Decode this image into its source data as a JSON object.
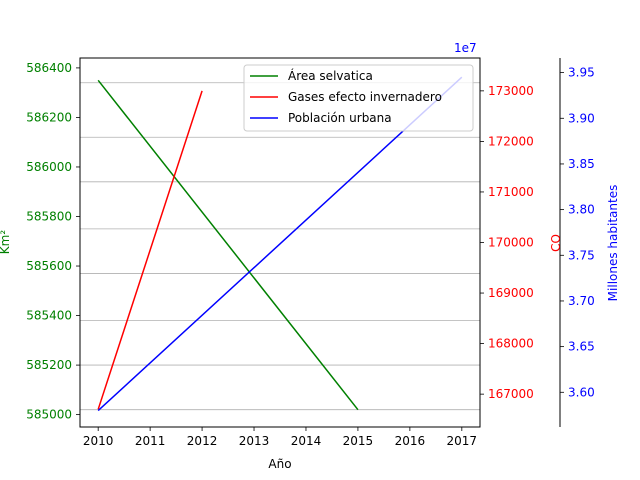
{
  "chart_data": {
    "type": "line",
    "x": [
      2010,
      2011,
      2012,
      2013,
      2014,
      2015,
      2016,
      2017
    ],
    "xlabel": "Año",
    "xlim": [
      2009.65,
      2017.35
    ],
    "xticks": [
      "2010",
      "2011",
      "2012",
      "2013",
      "2014",
      "2015",
      "2016",
      "2017"
    ],
    "axes": {
      "left": {
        "label": "Km²",
        "color": "#008000",
        "ylim": [
          584950,
          586440
        ],
        "ticks": [
          585000,
          585200,
          585400,
          585600,
          585800,
          586000,
          586200,
          586400
        ],
        "tick_labels": [
          "585000",
          "585200",
          "585400",
          "585600",
          "585800",
          "586000",
          "586200",
          "586400"
        ]
      },
      "right1": {
        "label": "CO",
        "color": "#ff0000",
        "ylim": [
          166350,
          173650
        ],
        "ticks": [
          167000,
          168000,
          169000,
          170000,
          171000,
          172000,
          173000
        ],
        "tick_labels": [
          "167000",
          "168000",
          "169000",
          "170000",
          "171000",
          "172000",
          "173000"
        ]
      },
      "right2": {
        "label": "Millones habitantes",
        "color": "#0000ff",
        "ylim": [
          3.562,
          3.966
        ],
        "ticks": [
          3.6,
          3.65,
          3.7,
          3.75,
          3.8,
          3.85,
          3.9,
          3.95
        ],
        "tick_labels": [
          "3.60",
          "3.65",
          "3.70",
          "3.75",
          "3.80",
          "3.85",
          "3.90",
          "3.95"
        ],
        "offset_text": "1e7"
      }
    },
    "series": [
      {
        "name": "Área selvatica",
        "axis": "left",
        "color": "#008000",
        "x": [
          2010,
          2015
        ],
        "values": [
          586350,
          585020
        ]
      },
      {
        "name": "Gases efecto invernadero",
        "axis": "right1",
        "color": "#ff0000",
        "x": [
          2010,
          2012
        ],
        "values": [
          166700,
          173000
        ]
      },
      {
        "name": "Población urbana",
        "axis": "right2",
        "color": "#0000ff",
        "x": [
          2010,
          2017
        ],
        "values": [
          3.58,
          3.945
        ]
      }
    ],
    "grid": "horizontal",
    "grid_y_values": [
      585020,
      585200,
      585380,
      585570,
      585750,
      585940,
      586120,
      586340
    ],
    "legend_position": "top-right"
  }
}
